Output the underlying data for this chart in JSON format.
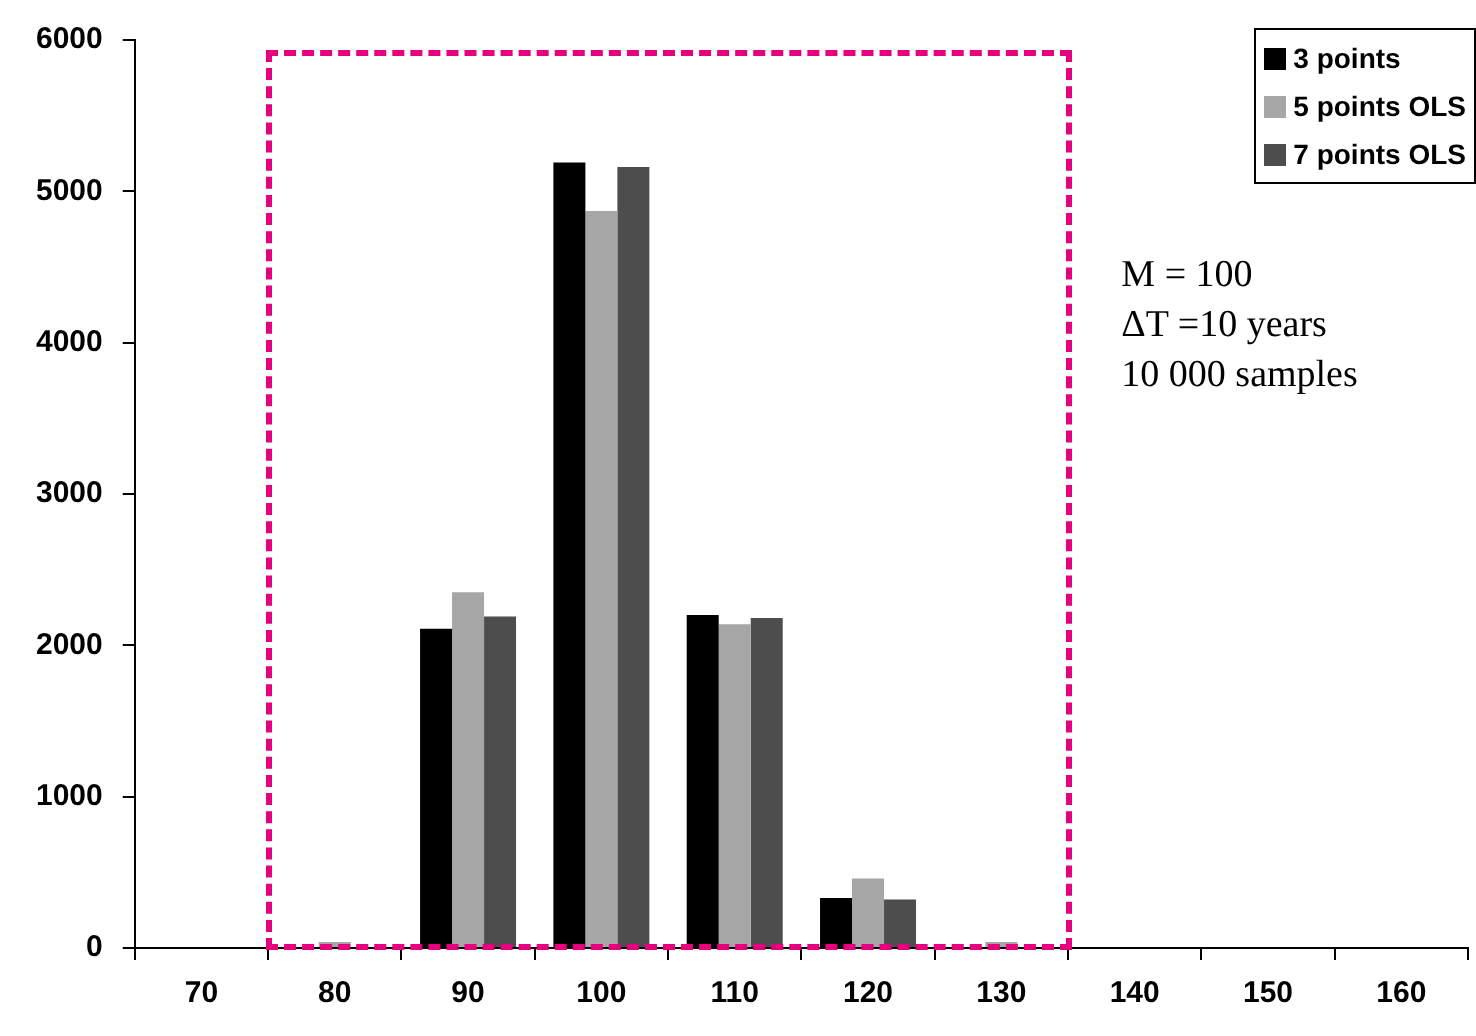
{
  "chart_data": {
    "type": "bar",
    "categories": [
      "70",
      "80",
      "90",
      "100",
      "110",
      "120",
      "130",
      "140",
      "150",
      "160"
    ],
    "series": [
      {
        "name": "3 points",
        "color": "#000000",
        "values": [
          null,
          null,
          2110,
          5190,
          2200,
          330,
          null,
          null,
          null,
          null
        ]
      },
      {
        "name": "5 points OLS",
        "color": "#a6a6a6",
        "values": [
          null,
          40,
          2350,
          4870,
          2140,
          460,
          40,
          null,
          null,
          null
        ]
      },
      {
        "name": "7 points OLS",
        "color": "#4d4d4d",
        "values": [
          null,
          null,
          2190,
          5160,
          2180,
          320,
          null,
          null,
          null,
          null
        ]
      }
    ],
    "ylim": [
      0,
      6000
    ],
    "yticks": [
      0,
      1000,
      2000,
      3000,
      4000,
      5000,
      6000
    ],
    "grid": false,
    "legend": "top right",
    "annotations": [
      "M = 100",
      "ΔT =10 years",
      "10 000 samples"
    ]
  }
}
